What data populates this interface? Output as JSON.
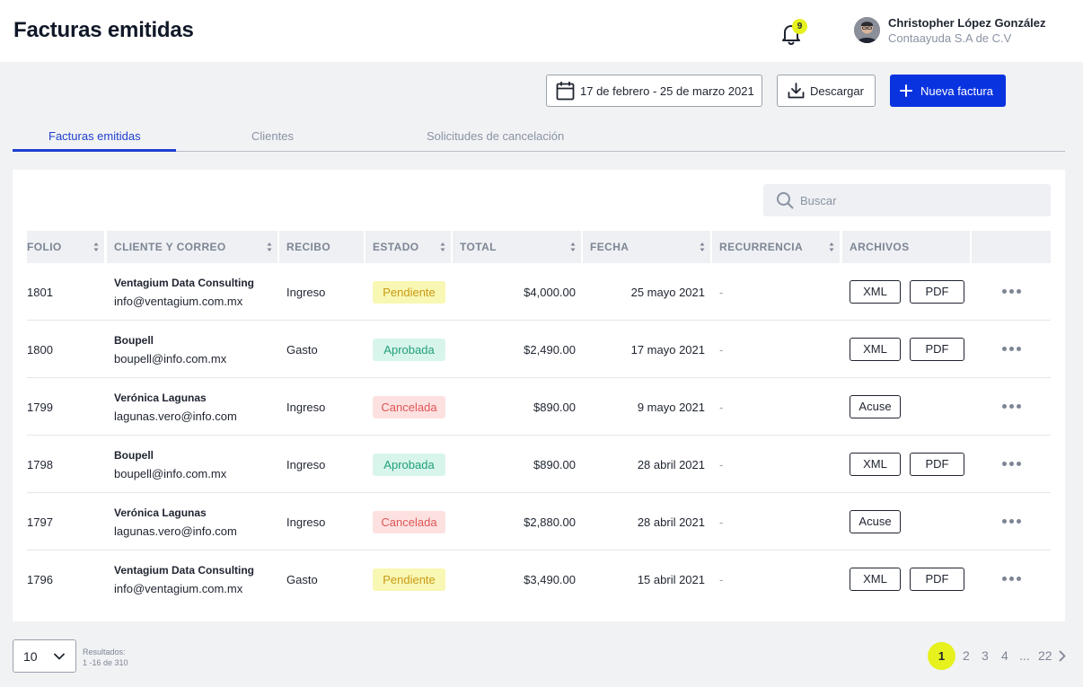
{
  "header": {
    "title": "Facturas emitidas",
    "notification_count": "9",
    "user_name": "Christopher López González",
    "user_company": "Contaayuda S.A de C.V"
  },
  "actions": {
    "date_range": "17 de febrero - 25 de marzo 2021",
    "download_label": "Descargar",
    "new_label": "Nueva factura"
  },
  "tabs": [
    {
      "label": "Facturas emitidas",
      "active": true
    },
    {
      "label": "Clientes",
      "active": false
    },
    {
      "label": "Solicitudes de cancelación",
      "active": false
    }
  ],
  "search": {
    "placeholder": "Buscar"
  },
  "table": {
    "columns": [
      "FOLIO",
      "CLIENTE Y CORREO",
      "RECIBO",
      "ESTADO",
      "TOTAL",
      "FECHA",
      "RECURRENCIA",
      "ARCHIVOS"
    ],
    "rows": [
      {
        "folio": "1801",
        "client": "Ventagium Data Consulting",
        "email": "info@ventagium.com.mx",
        "recibo": "Ingreso",
        "estado": "Pendiente",
        "total": "$4,000.00",
        "fecha": "25 mayo 2021",
        "recurrencia": "-",
        "files": [
          "XML",
          "PDF"
        ]
      },
      {
        "folio": "1800",
        "client": "Boupell",
        "email": "boupell@info.com.mx",
        "recibo": "Gasto",
        "estado": "Aprobada",
        "total": "$2,490.00",
        "fecha": "17 mayo 2021",
        "recurrencia": "-",
        "files": [
          "XML",
          "PDF"
        ]
      },
      {
        "folio": "1799",
        "client": "Verónica Lagunas",
        "email": "lagunas.vero@info.com",
        "recibo": "Ingreso",
        "estado": "Cancelada",
        "total": "$890.00",
        "fecha": "9 mayo 2021",
        "recurrencia": "-",
        "files": [
          "Acuse"
        ]
      },
      {
        "folio": "1798",
        "client": "Boupell",
        "email": "boupell@info.com.mx",
        "recibo": "Ingreso",
        "estado": "Aprobada",
        "total": "$890.00",
        "fecha": "28 abril 2021",
        "recurrencia": "-",
        "files": [
          "XML",
          "PDF"
        ]
      },
      {
        "folio": "1797",
        "client": "Verónica Lagunas",
        "email": "lagunas.vero@info.com",
        "recibo": "Ingreso",
        "estado": "Cancelada",
        "total": "$2,880.00",
        "fecha": "28 abril 2021",
        "recurrencia": "-",
        "files": [
          "Acuse"
        ]
      },
      {
        "folio": "1796",
        "client": "Ventagium Data Consulting",
        "email": "info@ventagium.com.mx",
        "recibo": "Gasto",
        "estado": "Pendiente",
        "total": "$3,490.00",
        "fecha": "15 abril 2021",
        "recurrencia": "-",
        "files": [
          "XML",
          "PDF"
        ]
      }
    ]
  },
  "footer": {
    "per_page": "10",
    "results_label": "Resultados:",
    "results_range": "1 -16 de 310",
    "pages": [
      "1",
      "2",
      "3",
      "4",
      "...",
      "22"
    ],
    "current_page": "1"
  },
  "colors": {
    "primary": "#0a33e0",
    "highlight": "#e6f11d",
    "pendiente": "#c99a16",
    "aprobada": "#20a07a",
    "cancelada": "#e05656"
  }
}
